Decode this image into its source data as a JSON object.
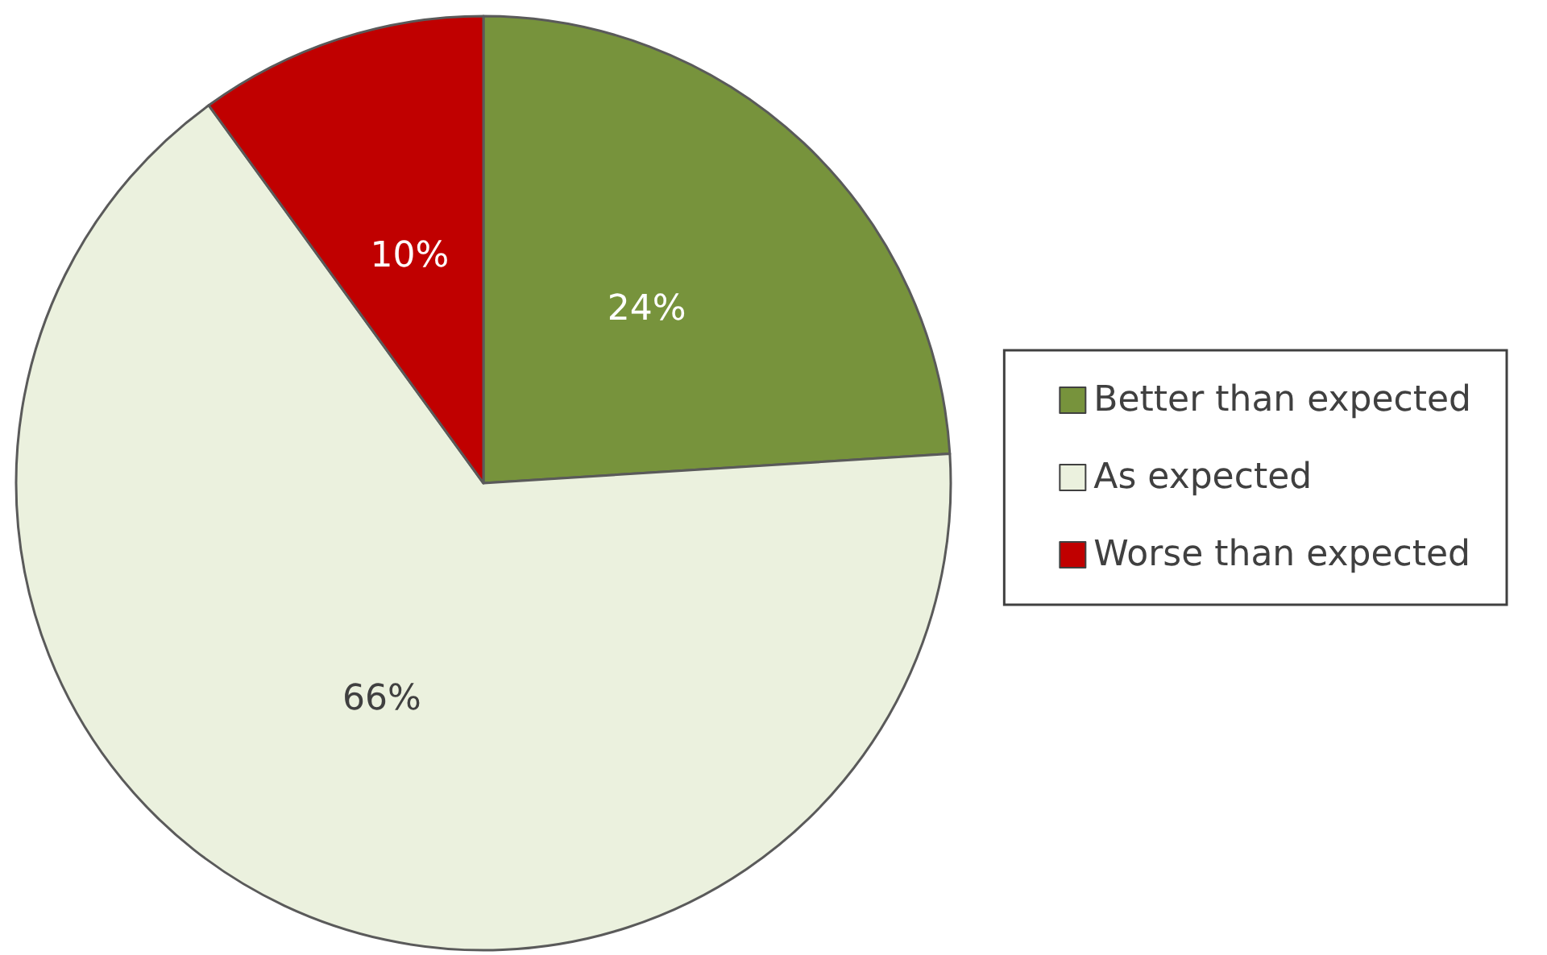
{
  "chart_data": {
    "type": "pie",
    "categories": [
      "Better than expected",
      "As expected",
      "Worse than expected"
    ],
    "values": [
      24,
      66,
      10
    ],
    "colors": [
      "#77933c",
      "#ebf1de",
      "#c00000"
    ],
    "value_labels": [
      "24%",
      "66%",
      "10%"
    ],
    "legend": "right"
  }
}
